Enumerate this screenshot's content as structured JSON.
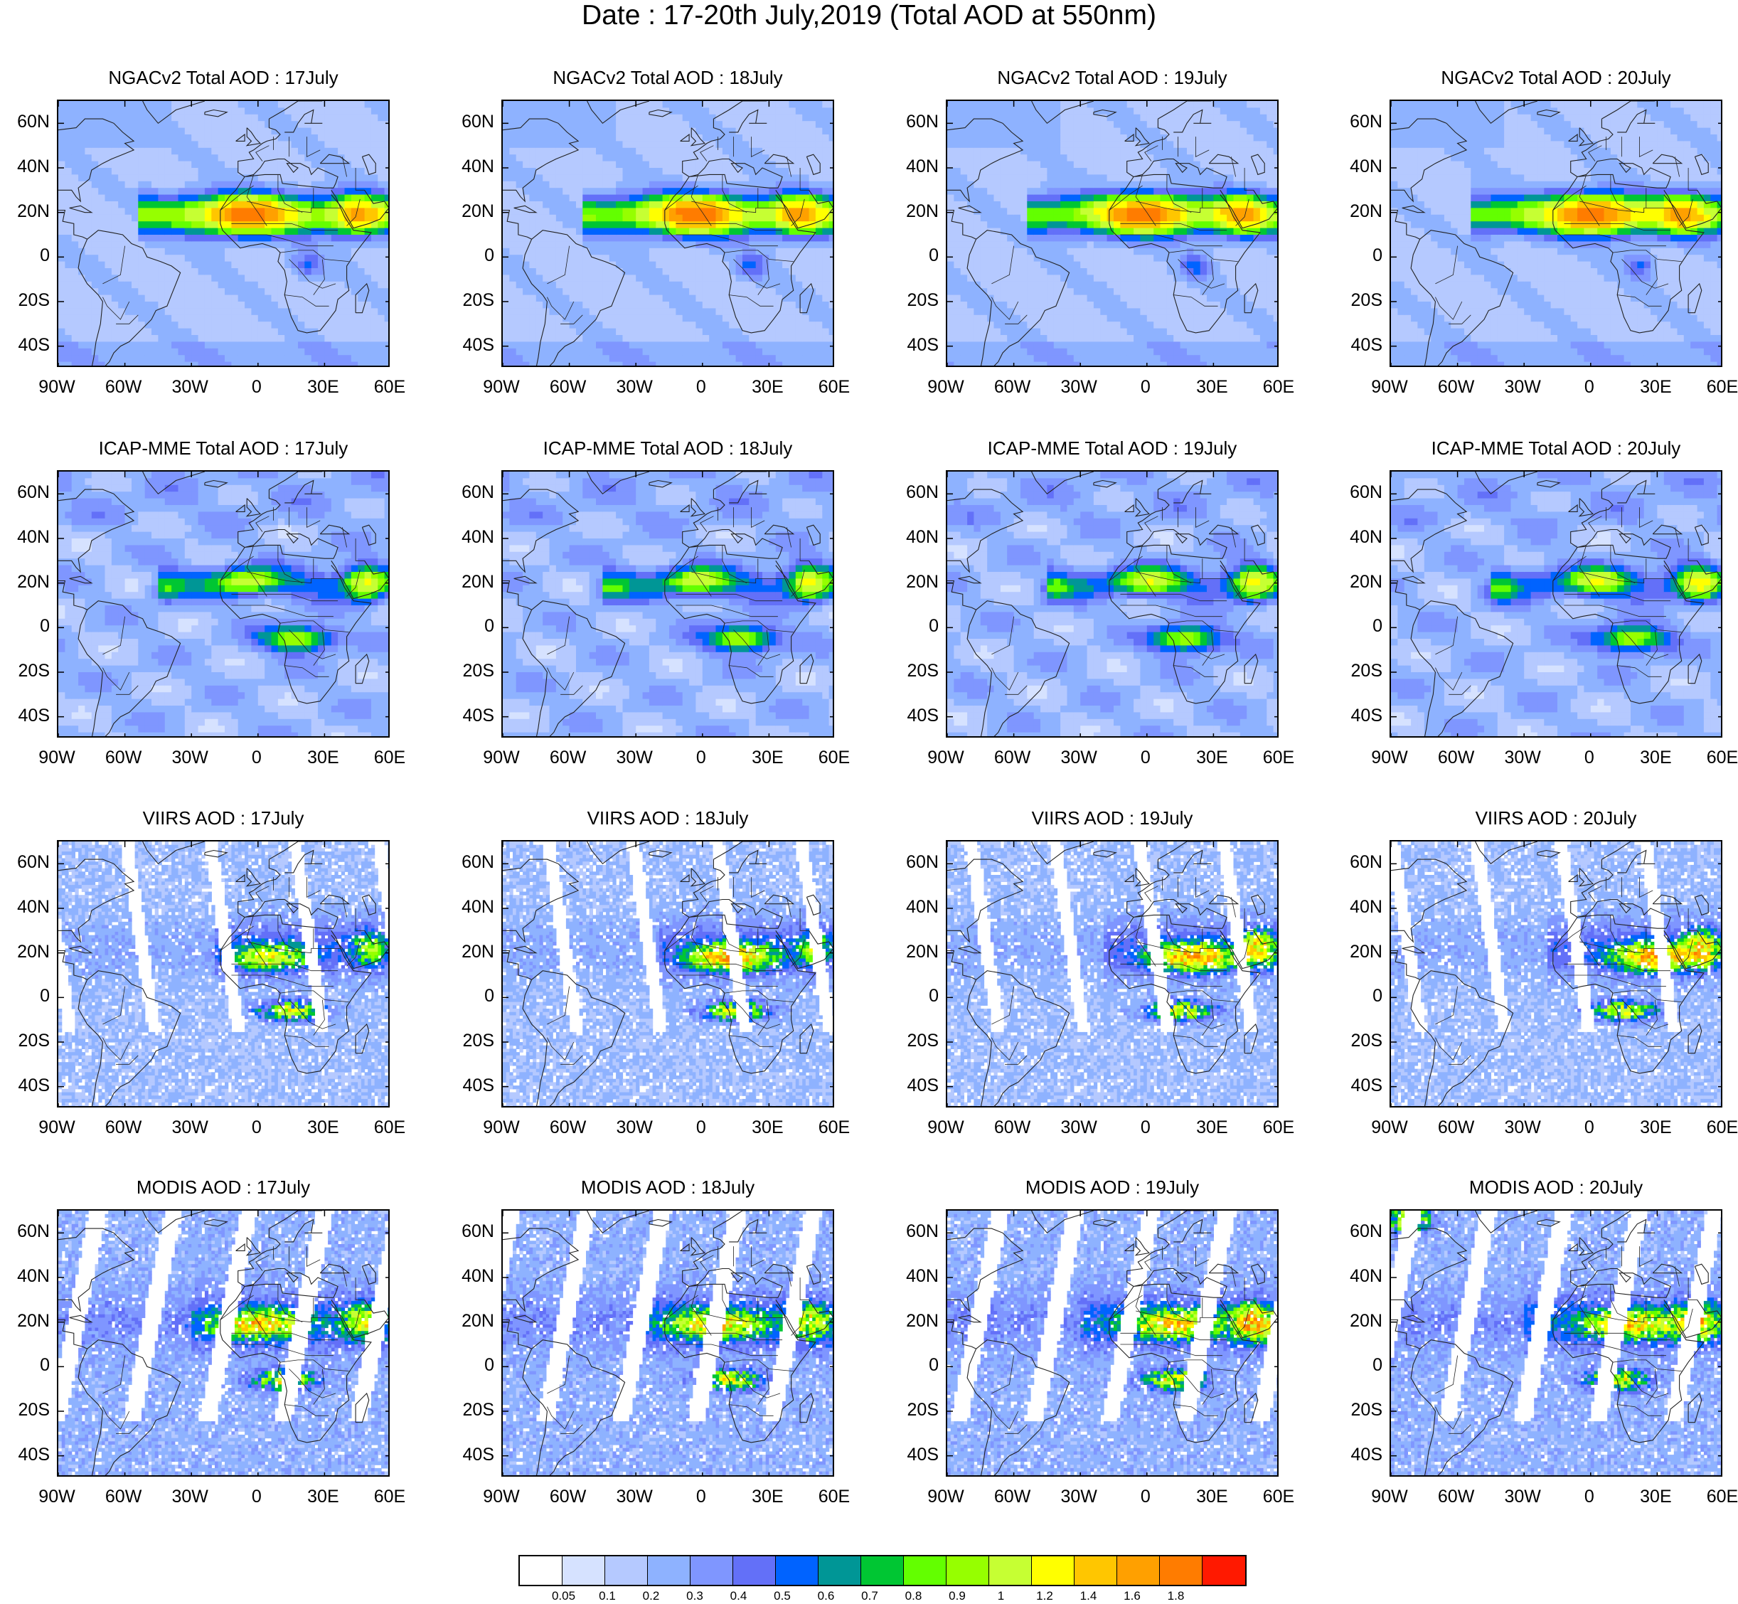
{
  "title": "Date : 17-20th July,2019 (Total AOD at 550nm)",
  "panels": [
    {
      "title": "NGACv2 Total AOD : 17July",
      "row": 0,
      "col": 0,
      "model": "ngac",
      "day": 17
    },
    {
      "title": "NGACv2 Total AOD : 18July",
      "row": 0,
      "col": 1,
      "model": "ngac",
      "day": 18
    },
    {
      "title": "NGACv2 Total AOD : 19July",
      "row": 0,
      "col": 2,
      "model": "ngac",
      "day": 19
    },
    {
      "title": "NGACv2 Total AOD : 20July",
      "row": 0,
      "col": 3,
      "model": "ngac",
      "day": 20
    },
    {
      "title": "ICAP-MME Total AOD : 17July",
      "row": 1,
      "col": 0,
      "model": "icap",
      "day": 17
    },
    {
      "title": "ICAP-MME Total AOD : 18July",
      "row": 1,
      "col": 1,
      "model": "icap",
      "day": 18
    },
    {
      "title": "ICAP-MME Total AOD : 19July",
      "row": 1,
      "col": 2,
      "model": "icap",
      "day": 19
    },
    {
      "title": "ICAP-MME Total AOD : 20July",
      "row": 1,
      "col": 3,
      "model": "icap",
      "day": 20
    },
    {
      "title": "VIIRS AOD : 17July",
      "row": 2,
      "col": 0,
      "model": "viirs",
      "day": 17
    },
    {
      "title": "VIIRS AOD : 18July",
      "row": 2,
      "col": 1,
      "model": "viirs",
      "day": 18
    },
    {
      "title": "VIIRS AOD : 19July",
      "row": 2,
      "col": 2,
      "model": "viirs",
      "day": 19
    },
    {
      "title": "VIIRS AOD : 20July",
      "row": 2,
      "col": 3,
      "model": "viirs",
      "day": 20
    },
    {
      "title": "MODIS AOD : 17July",
      "row": 3,
      "col": 0,
      "model": "modis",
      "day": 17
    },
    {
      "title": "MODIS AOD : 18July",
      "row": 3,
      "col": 1,
      "model": "modis",
      "day": 18
    },
    {
      "title": "MODIS AOD : 19July",
      "row": 3,
      "col": 2,
      "model": "modis",
      "day": 19
    },
    {
      "title": "MODIS AOD : 20July",
      "row": 3,
      "col": 3,
      "model": "modis",
      "day": 20
    }
  ],
  "map_extent": {
    "lon_min": -90,
    "lon_max": 60,
    "lat_min": -50,
    "lat_max": 70
  },
  "lat_ticks": [
    {
      "value": 60,
      "label": "60N"
    },
    {
      "value": 40,
      "label": "40N"
    },
    {
      "value": 20,
      "label": "20N"
    },
    {
      "value": 0,
      "label": "0"
    },
    {
      "value": -20,
      "label": "20S"
    },
    {
      "value": -40,
      "label": "40S"
    }
  ],
  "lon_ticks": [
    {
      "value": -90,
      "label": "90W"
    },
    {
      "value": -60,
      "label": "60W"
    },
    {
      "value": -30,
      "label": "30W"
    },
    {
      "value": 0,
      "label": "0"
    },
    {
      "value": 30,
      "label": "30E"
    },
    {
      "value": 60,
      "label": "60E"
    }
  ],
  "colorbar": {
    "colors": [
      "#ffffff",
      "#d6e2ff",
      "#b5c9ff",
      "#8eb2ff",
      "#7f96ff",
      "#6370f8",
      "#0063ff",
      "#009696",
      "#00c633",
      "#63ff00",
      "#96ff00",
      "#c6ff33",
      "#ffff00",
      "#ffc600",
      "#ffa000",
      "#ff7c00",
      "#ff1900"
    ],
    "labels": [
      "0.05",
      "0.1",
      "0.2",
      "0.3",
      "0.4",
      "0.5",
      "0.6",
      "0.7",
      "0.8",
      "0.9",
      "1",
      "1.2",
      "1.4",
      "1.6",
      "1.8"
    ]
  }
}
